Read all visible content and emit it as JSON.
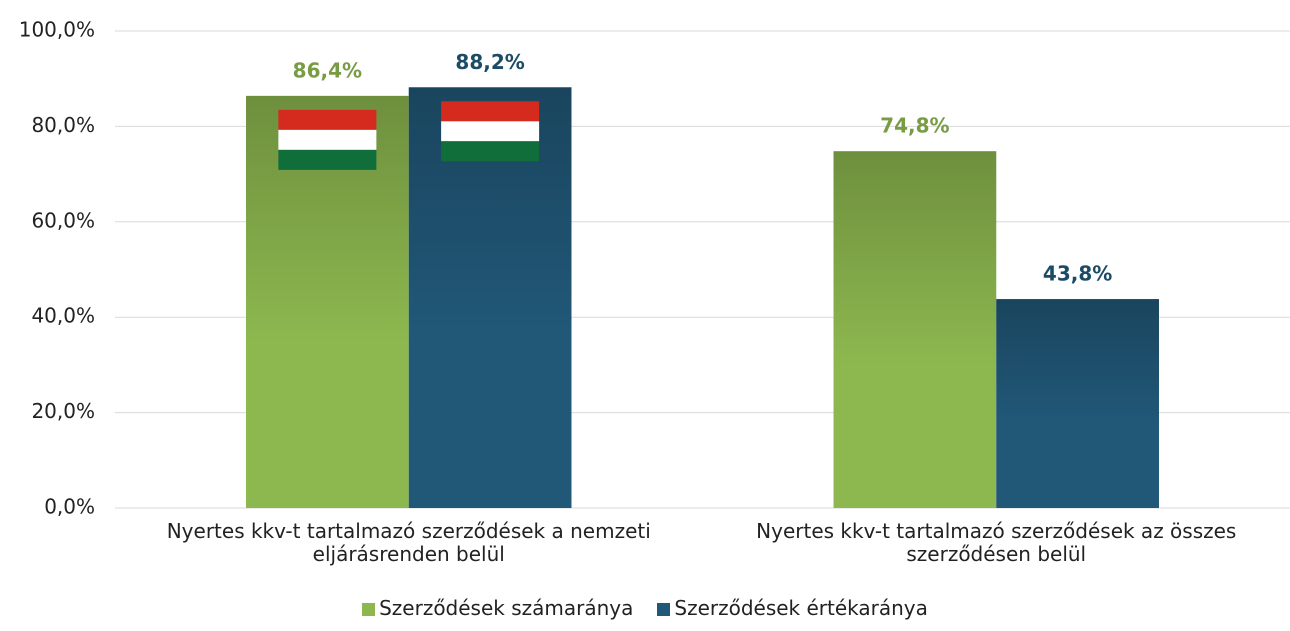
{
  "chart_data": {
    "type": "bar",
    "categories": [
      "Nyertes kkv-t tartalmazó szerződések a nemzeti eljárásrenden belül",
      "Nyertes kkv-t tartalmazó szerződések az összes szerződésen belül"
    ],
    "series": [
      {
        "name": "Szerződések számaránya",
        "color": "#8db84f",
        "values": [
          86.4,
          74.8
        ],
        "value_labels": [
          "86,4%",
          "74,8%"
        ]
      },
      {
        "name": "Szerződések értékaránya",
        "color": "#215878",
        "values": [
          88.2,
          43.8
        ],
        "value_labels": [
          "88,2%",
          "43,8%"
        ]
      }
    ],
    "ylim": [
      0,
      100
    ],
    "yticks": [
      {
        "value": 0,
        "label": "0,0%"
      },
      {
        "value": 20,
        "label": "20,0%"
      },
      {
        "value": 40,
        "label": "40,0%"
      },
      {
        "value": 60,
        "label": "60,0%"
      },
      {
        "value": 80,
        "label": "80,0%"
      },
      {
        "value": 100,
        "label": "100,0%"
      }
    ],
    "grid": true,
    "legend": "bottom"
  }
}
